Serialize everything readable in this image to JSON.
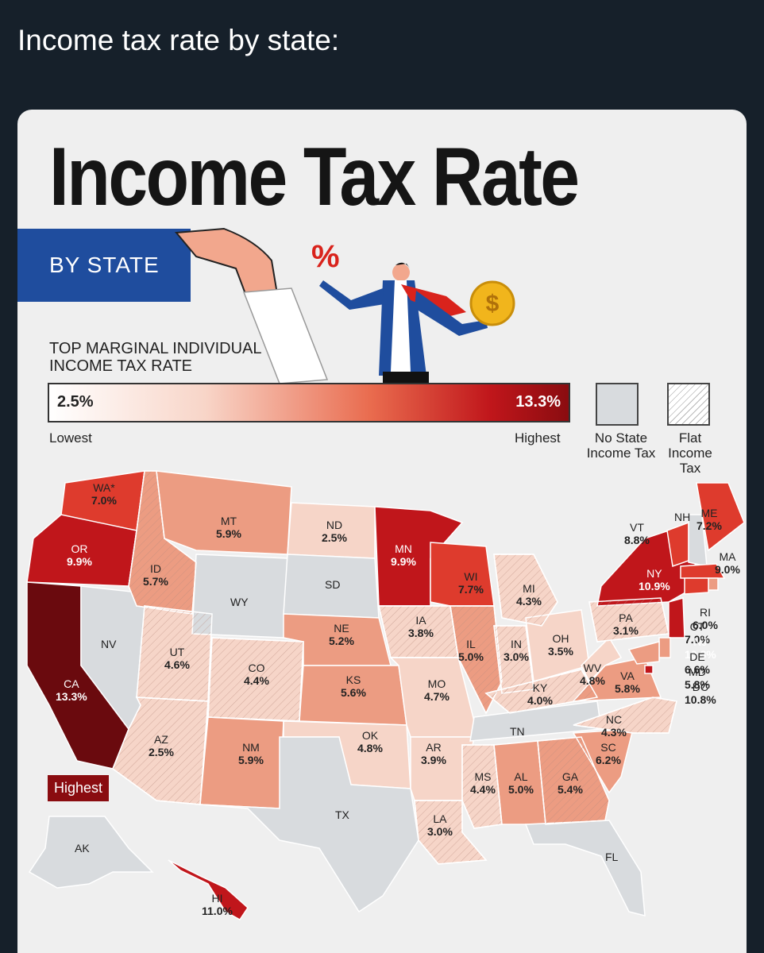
{
  "post": {
    "caption": "Income tax rate by state:"
  },
  "infographic": {
    "title": "Income Tax Rate",
    "subtitle": "BY STATE",
    "illustration_symbol": "%",
    "legend": {
      "heading": "TOP MARGINAL INDIVIDUAL INCOME TAX RATE",
      "scale_min": "2.5%",
      "scale_max": "13.3%",
      "lowest_label": "Lowest",
      "highest_label": "Highest",
      "no_tax_label": "No State Income Tax",
      "flat_tax_label": "Flat Income Tax"
    },
    "highest_tag": "Highest"
  },
  "colors": {
    "no_tax": "#d8dbde",
    "low": "#f6d5c8",
    "mid": "#ec9c82",
    "high": "#de3b2d",
    "very_high": "#c0161b",
    "highest": "#6a0a0e"
  },
  "states": [
    {
      "code": "WA",
      "label": "WA*",
      "rate": "7.0%",
      "type": "graduated"
    },
    {
      "code": "OR",
      "rate": "9.9%",
      "type": "graduated"
    },
    {
      "code": "CA",
      "rate": "13.3%",
      "type": "graduated"
    },
    {
      "code": "ID",
      "rate": "5.7%",
      "type": "flat"
    },
    {
      "code": "NV",
      "rate": "",
      "type": "none"
    },
    {
      "code": "UT",
      "rate": "4.6%",
      "type": "flat"
    },
    {
      "code": "AZ",
      "rate": "2.5%",
      "type": "flat"
    },
    {
      "code": "MT",
      "rate": "5.9%",
      "type": "graduated"
    },
    {
      "code": "WY",
      "rate": "",
      "type": "none"
    },
    {
      "code": "CO",
      "rate": "4.4%",
      "type": "flat"
    },
    {
      "code": "NM",
      "rate": "5.9%",
      "type": "graduated"
    },
    {
      "code": "ND",
      "rate": "2.5%",
      "type": "graduated"
    },
    {
      "code": "SD",
      "rate": "",
      "type": "none"
    },
    {
      "code": "NE",
      "rate": "5.2%",
      "type": "graduated"
    },
    {
      "code": "KS",
      "rate": "5.6%",
      "type": "graduated"
    },
    {
      "code": "OK",
      "rate": "4.8%",
      "type": "graduated"
    },
    {
      "code": "TX",
      "rate": "",
      "type": "none"
    },
    {
      "code": "MN",
      "rate": "9.9%",
      "type": "graduated"
    },
    {
      "code": "IA",
      "rate": "3.8%",
      "type": "flat"
    },
    {
      "code": "MO",
      "rate": "4.7%",
      "type": "graduated"
    },
    {
      "code": "AR",
      "rate": "3.9%",
      "type": "graduated"
    },
    {
      "code": "LA",
      "rate": "3.0%",
      "type": "flat"
    },
    {
      "code": "WI",
      "rate": "7.7%",
      "type": "graduated"
    },
    {
      "code": "IL",
      "rate": "5.0%",
      "type": "flat"
    },
    {
      "code": "MI",
      "rate": "4.3%",
      "type": "flat"
    },
    {
      "code": "IN",
      "rate": "3.0%",
      "type": "flat"
    },
    {
      "code": "OH",
      "rate": "3.5%",
      "type": "graduated"
    },
    {
      "code": "KY",
      "rate": "4.0%",
      "type": "flat"
    },
    {
      "code": "TN",
      "rate": "",
      "type": "none"
    },
    {
      "code": "MS",
      "rate": "4.4%",
      "type": "flat"
    },
    {
      "code": "AL",
      "rate": "5.0%",
      "type": "graduated"
    },
    {
      "code": "GA",
      "rate": "5.4%",
      "type": "flat"
    },
    {
      "code": "FL",
      "rate": "",
      "type": "none"
    },
    {
      "code": "SC",
      "rate": "6.2%",
      "type": "graduated"
    },
    {
      "code": "NC",
      "rate": "4.3%",
      "type": "flat"
    },
    {
      "code": "VA",
      "rate": "5.8%",
      "type": "graduated"
    },
    {
      "code": "WV",
      "rate": "4.8%",
      "type": "graduated"
    },
    {
      "code": "PA",
      "rate": "3.1%",
      "type": "flat"
    },
    {
      "code": "NY",
      "rate": "10.9%",
      "type": "graduated"
    },
    {
      "code": "VT",
      "rate": "8.8%",
      "type": "graduated"
    },
    {
      "code": "NH",
      "rate": "",
      "type": "none"
    },
    {
      "code": "ME",
      "rate": "7.2%",
      "type": "graduated"
    },
    {
      "code": "MA",
      "rate": "9.0%",
      "type": "graduated"
    },
    {
      "code": "RI",
      "rate": "6.0%",
      "type": "graduated"
    },
    {
      "code": "CT",
      "rate": "7.0%",
      "type": "graduated"
    },
    {
      "code": "NJ",
      "rate": "10.8%",
      "type": "graduated"
    },
    {
      "code": "DE",
      "rate": "6.6%",
      "type": "graduated"
    },
    {
      "code": "MD",
      "rate": "5.8%",
      "type": "graduated"
    },
    {
      "code": "DC",
      "rate": "10.8%",
      "type": "graduated"
    },
    {
      "code": "AK",
      "rate": "",
      "type": "none"
    },
    {
      "code": "HI",
      "rate": "11.0%",
      "type": "graduated"
    }
  ]
}
